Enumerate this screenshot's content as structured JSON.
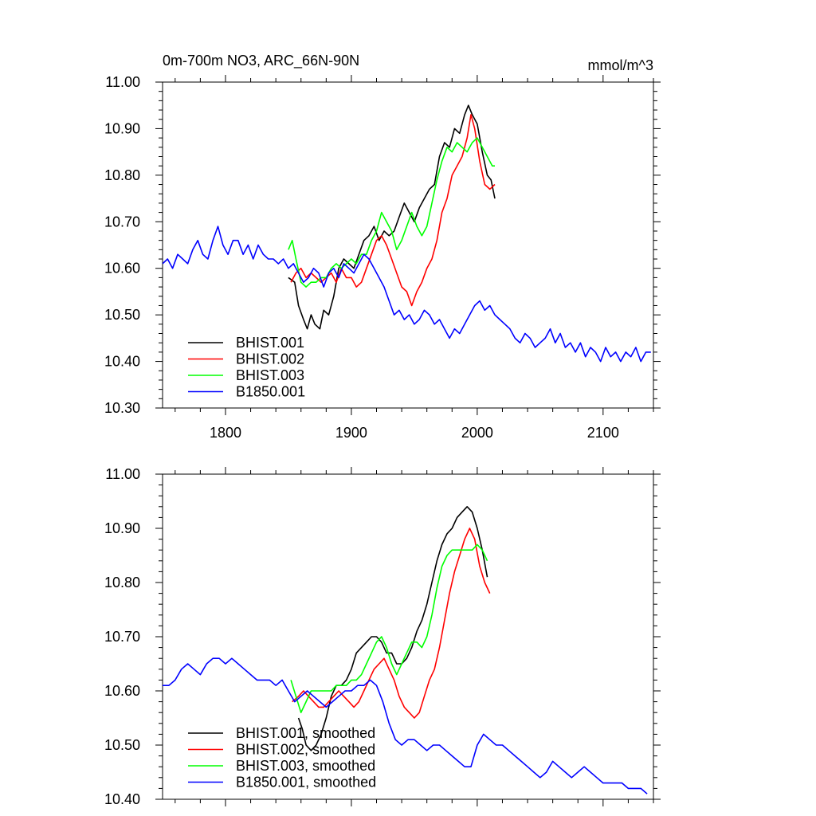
{
  "header": {
    "title": "0m-700m NO3, ARC_66N-90N",
    "units": "mmol/m^3"
  },
  "chart_data": [
    {
      "type": "line",
      "title": "0m-700m NO3, ARC_66N-90N",
      "units": "mmol/m^3",
      "xlim": [
        1750,
        2140
      ],
      "ylim": [
        10.3,
        11.0
      ],
      "x_ticks": [
        1800,
        1900,
        2000,
        2100
      ],
      "x_tick_labels": [
        "1800",
        "1900",
        "2000",
        "2100"
      ],
      "y_ticks": [
        10.3,
        10.4,
        10.5,
        10.6,
        10.7,
        10.8,
        10.9,
        11.0
      ],
      "y_tick_labels": [
        "10.30",
        "10.40",
        "10.50",
        "10.60",
        "10.70",
        "10.80",
        "10.90",
        "11.00"
      ],
      "legend_position": "bottom-left",
      "series": [
        {
          "name": "BHIST.001",
          "color": "#000000",
          "x": [
            1850,
            1855,
            1858,
            1862,
            1865,
            1868,
            1871,
            1875,
            1878,
            1882,
            1886,
            1890,
            1894,
            1898,
            1902,
            1906,
            1910,
            1914,
            1918,
            1922,
            1926,
            1930,
            1934,
            1938,
            1942,
            1946,
            1950,
            1954,
            1958,
            1962,
            1966,
            1970,
            1974,
            1978,
            1982,
            1986,
            1990,
            1993,
            1996,
            2000,
            2004,
            2008,
            2011,
            2014
          ],
          "values": [
            10.58,
            10.57,
            10.52,
            10.49,
            10.47,
            10.5,
            10.48,
            10.47,
            10.51,
            10.5,
            10.54,
            10.6,
            10.62,
            10.61,
            10.6,
            10.63,
            10.66,
            10.67,
            10.69,
            10.66,
            10.68,
            10.67,
            10.68,
            10.71,
            10.74,
            10.72,
            10.7,
            10.73,
            10.75,
            10.77,
            10.78,
            10.84,
            10.87,
            10.86,
            10.9,
            10.89,
            10.93,
            10.95,
            10.93,
            10.91,
            10.85,
            10.8,
            10.79,
            10.75
          ]
        },
        {
          "name": "BHIST.002",
          "color": "#ff0000",
          "x": [
            1852,
            1856,
            1860,
            1864,
            1868,
            1872,
            1876,
            1880,
            1884,
            1888,
            1892,
            1896,
            1900,
            1904,
            1908,
            1912,
            1916,
            1920,
            1924,
            1928,
            1932,
            1936,
            1940,
            1944,
            1948,
            1952,
            1956,
            1960,
            1964,
            1968,
            1972,
            1976,
            1980,
            1984,
            1988,
            1992,
            1995,
            1998,
            2002,
            2006,
            2010,
            2014
          ],
          "values": [
            10.57,
            10.59,
            10.6,
            10.58,
            10.59,
            10.58,
            10.57,
            10.58,
            10.59,
            10.57,
            10.6,
            10.58,
            10.58,
            10.56,
            10.57,
            10.6,
            10.63,
            10.66,
            10.67,
            10.65,
            10.62,
            10.59,
            10.56,
            10.55,
            10.52,
            10.55,
            10.57,
            10.6,
            10.62,
            10.66,
            10.72,
            10.75,
            10.8,
            10.82,
            10.84,
            10.88,
            10.93,
            10.9,
            10.83,
            10.78,
            10.77,
            10.78
          ]
        },
        {
          "name": "BHIST.003",
          "color": "#00ff00",
          "x": [
            1850,
            1853,
            1856,
            1860,
            1864,
            1868,
            1872,
            1876,
            1880,
            1884,
            1888,
            1892,
            1896,
            1900,
            1904,
            1908,
            1912,
            1916,
            1920,
            1924,
            1928,
            1932,
            1936,
            1940,
            1944,
            1948,
            1952,
            1956,
            1960,
            1964,
            1968,
            1972,
            1976,
            1980,
            1984,
            1988,
            1992,
            1996,
            2000,
            2004,
            2008,
            2012,
            2014
          ],
          "values": [
            10.64,
            10.66,
            10.62,
            10.57,
            10.56,
            10.57,
            10.57,
            10.58,
            10.58,
            10.6,
            10.61,
            10.6,
            10.61,
            10.62,
            10.61,
            10.63,
            10.63,
            10.66,
            10.68,
            10.72,
            10.7,
            10.68,
            10.64,
            10.66,
            10.69,
            10.72,
            10.69,
            10.67,
            10.69,
            10.74,
            10.79,
            10.83,
            10.86,
            10.85,
            10.87,
            10.86,
            10.85,
            10.87,
            10.88,
            10.86,
            10.84,
            10.82,
            10.82
          ]
        },
        {
          "name": "B1850.001",
          "color": "#0000ff",
          "x": [
            1750,
            1754,
            1758,
            1762,
            1766,
            1770,
            1774,
            1778,
            1782,
            1786,
            1790,
            1794,
            1798,
            1802,
            1806,
            1810,
            1814,
            1818,
            1822,
            1826,
            1830,
            1834,
            1838,
            1842,
            1846,
            1850,
            1854,
            1858,
            1862,
            1866,
            1870,
            1874,
            1878,
            1882,
            1886,
            1890,
            1894,
            1898,
            1902,
            1906,
            1910,
            1914,
            1918,
            1922,
            1926,
            1930,
            1934,
            1938,
            1942,
            1946,
            1950,
            1954,
            1958,
            1962,
            1966,
            1970,
            1974,
            1978,
            1982,
            1986,
            1990,
            1994,
            1998,
            2002,
            2006,
            2010,
            2014,
            2018,
            2022,
            2026,
            2030,
            2034,
            2038,
            2042,
            2046,
            2050,
            2054,
            2058,
            2062,
            2066,
            2070,
            2074,
            2078,
            2082,
            2086,
            2090,
            2094,
            2098,
            2102,
            2106,
            2110,
            2114,
            2118,
            2122,
            2126,
            2130,
            2134,
            2138
          ],
          "values": [
            10.61,
            10.62,
            10.6,
            10.63,
            10.62,
            10.61,
            10.64,
            10.66,
            10.63,
            10.62,
            10.66,
            10.69,
            10.65,
            10.63,
            10.66,
            10.66,
            10.63,
            10.65,
            10.62,
            10.65,
            10.63,
            10.62,
            10.62,
            10.61,
            10.62,
            10.6,
            10.61,
            10.59,
            10.57,
            10.58,
            10.6,
            10.59,
            10.56,
            10.59,
            10.6,
            10.58,
            10.61,
            10.6,
            10.59,
            10.61,
            10.63,
            10.62,
            10.6,
            10.58,
            10.56,
            10.53,
            10.5,
            10.51,
            10.49,
            10.5,
            10.48,
            10.49,
            10.51,
            10.5,
            10.48,
            10.49,
            10.47,
            10.45,
            10.47,
            10.46,
            10.48,
            10.5,
            10.52,
            10.53,
            10.51,
            10.52,
            10.5,
            10.49,
            10.48,
            10.47,
            10.45,
            10.44,
            10.46,
            10.45,
            10.43,
            10.44,
            10.45,
            10.47,
            10.44,
            10.46,
            10.43,
            10.44,
            10.42,
            10.44,
            10.41,
            10.43,
            10.42,
            10.4,
            10.43,
            10.41,
            10.42,
            10.4,
            10.42,
            10.41,
            10.43,
            10.4,
            10.42,
            10.42
          ]
        }
      ]
    },
    {
      "type": "line",
      "xlim": [
        1750,
        2140
      ],
      "ylim": [
        10.4,
        11.0
      ],
      "x_ticks": [
        1800,
        1900,
        2000,
        2100
      ],
      "y_ticks": [
        10.4,
        10.5,
        10.6,
        10.7,
        10.8,
        10.9,
        11.0
      ],
      "y_tick_labels": [
        "10.40",
        "10.50",
        "10.60",
        "10.70",
        "10.80",
        "10.90",
        "11.00"
      ],
      "legend_position": "bottom-left",
      "series": [
        {
          "name": "BHIST.001, smoothed",
          "color": "#000000",
          "x": [
            1858,
            1861,
            1864,
            1868,
            1872,
            1876,
            1880,
            1884,
            1888,
            1892,
            1896,
            1900,
            1904,
            1908,
            1912,
            1916,
            1920,
            1924,
            1928,
            1932,
            1936,
            1940,
            1944,
            1948,
            1952,
            1956,
            1960,
            1964,
            1968,
            1972,
            1976,
            1980,
            1984,
            1988,
            1992,
            1996,
            2000,
            2004,
            2008
          ],
          "values": [
            10.55,
            10.53,
            10.5,
            10.49,
            10.5,
            10.52,
            10.55,
            10.59,
            10.61,
            10.61,
            10.62,
            10.64,
            10.67,
            10.68,
            10.69,
            10.7,
            10.7,
            10.69,
            10.67,
            10.67,
            10.65,
            10.65,
            10.66,
            10.68,
            10.71,
            10.73,
            10.76,
            10.8,
            10.84,
            10.87,
            10.89,
            10.9,
            10.92,
            10.93,
            10.94,
            10.93,
            10.9,
            10.86,
            10.81
          ]
        },
        {
          "name": "BHIST.002, smoothed",
          "color": "#ff0000",
          "x": [
            1853,
            1858,
            1862,
            1866,
            1870,
            1874,
            1878,
            1882,
            1886,
            1890,
            1894,
            1898,
            1902,
            1906,
            1910,
            1914,
            1918,
            1922,
            1926,
            1930,
            1934,
            1938,
            1942,
            1946,
            1950,
            1954,
            1958,
            1962,
            1966,
            1970,
            1974,
            1978,
            1982,
            1986,
            1990,
            1994,
            1998,
            2002,
            2006,
            2010
          ],
          "values": [
            10.58,
            10.59,
            10.6,
            10.59,
            10.58,
            10.57,
            10.57,
            10.58,
            10.59,
            10.6,
            10.59,
            10.58,
            10.57,
            10.58,
            10.6,
            10.62,
            10.64,
            10.65,
            10.66,
            10.64,
            10.62,
            10.59,
            10.57,
            10.56,
            10.55,
            10.56,
            10.59,
            10.62,
            10.64,
            10.68,
            10.73,
            10.78,
            10.82,
            10.85,
            10.88,
            10.9,
            10.88,
            10.83,
            10.8,
            10.78
          ]
        },
        {
          "name": "BHIST.003, smoothed",
          "color": "#00ff00",
          "x": [
            1852,
            1856,
            1860,
            1864,
            1868,
            1872,
            1876,
            1880,
            1884,
            1888,
            1892,
            1896,
            1900,
            1904,
            1908,
            1912,
            1916,
            1920,
            1924,
            1928,
            1932,
            1936,
            1940,
            1944,
            1948,
            1952,
            1956,
            1960,
            1964,
            1968,
            1972,
            1976,
            1980,
            1984,
            1988,
            1992,
            1996,
            2000,
            2004,
            2008
          ],
          "values": [
            10.62,
            10.59,
            10.56,
            10.58,
            10.6,
            10.6,
            10.6,
            10.6,
            10.6,
            10.61,
            10.61,
            10.61,
            10.62,
            10.62,
            10.63,
            10.65,
            10.67,
            10.69,
            10.7,
            10.68,
            10.65,
            10.63,
            10.65,
            10.67,
            10.69,
            10.69,
            10.68,
            10.7,
            10.74,
            10.79,
            10.83,
            10.85,
            10.86,
            10.86,
            10.86,
            10.86,
            10.86,
            10.87,
            10.86,
            10.84
          ]
        },
        {
          "name": "B1850.001, smoothed",
          "color": "#0000ff",
          "x": [
            1750,
            1755,
            1760,
            1765,
            1770,
            1775,
            1780,
            1785,
            1790,
            1795,
            1800,
            1805,
            1810,
            1815,
            1820,
            1825,
            1830,
            1835,
            1840,
            1845,
            1850,
            1855,
            1860,
            1865,
            1870,
            1875,
            1880,
            1885,
            1890,
            1895,
            1900,
            1905,
            1910,
            1915,
            1920,
            1925,
            1930,
            1935,
            1940,
            1945,
            1950,
            1955,
            1960,
            1965,
            1970,
            1975,
            1980,
            1985,
            1990,
            1995,
            2000,
            2005,
            2010,
            2015,
            2020,
            2025,
            2030,
            2035,
            2040,
            2045,
            2050,
            2055,
            2060,
            2065,
            2070,
            2075,
            2080,
            2085,
            2090,
            2095,
            2100,
            2105,
            2110,
            2115,
            2120,
            2125,
            2130,
            2135
          ],
          "values": [
            10.61,
            10.61,
            10.62,
            10.64,
            10.65,
            10.64,
            10.63,
            10.65,
            10.66,
            10.66,
            10.65,
            10.66,
            10.65,
            10.64,
            10.63,
            10.62,
            10.62,
            10.62,
            10.61,
            10.62,
            10.6,
            10.58,
            10.59,
            10.6,
            10.59,
            10.58,
            10.57,
            10.58,
            10.59,
            10.6,
            10.6,
            10.61,
            10.61,
            10.62,
            10.61,
            10.58,
            10.54,
            10.51,
            10.5,
            10.51,
            10.51,
            10.5,
            10.49,
            10.5,
            10.5,
            10.49,
            10.48,
            10.47,
            10.46,
            10.46,
            10.5,
            10.52,
            10.51,
            10.5,
            10.5,
            10.49,
            10.48,
            10.47,
            10.46,
            10.45,
            10.44,
            10.45,
            10.47,
            10.46,
            10.45,
            10.44,
            10.45,
            10.46,
            10.45,
            10.44,
            10.43,
            10.43,
            10.43,
            10.43,
            10.42,
            10.42,
            10.42,
            10.41
          ]
        }
      ]
    }
  ]
}
